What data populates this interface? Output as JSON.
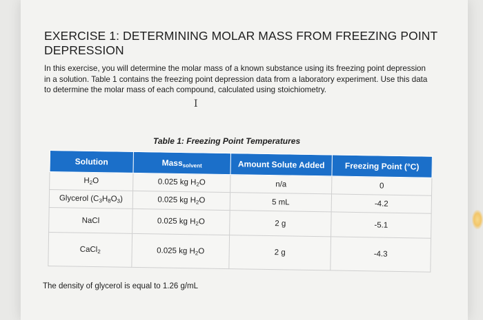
{
  "exercise": {
    "title": "EXERCISE 1: DETERMINING MOLAR MASS FROM FREEZING POINT DEPRESSION",
    "intro": "In this exercise, you will determine the molar mass of a known substance using its freezing point depression in a solution. Table 1 contains the freezing point depression data from a laboratory experiment. Use this data to determine the molar mass of each compound, calculated using stoichiometry.",
    "cursor_glyph": "I"
  },
  "table": {
    "caption": "Table 1: Freezing Point Temperatures",
    "headers": {
      "solution": "Solution",
      "mass_main": "Mass",
      "mass_sub": "solvent",
      "solute": "Amount Solute Added",
      "freezing": "Freezing Point (°C)"
    },
    "rows": [
      {
        "solution": [
          {
            "t": "H"
          },
          {
            "t": "2",
            "sub": true
          },
          {
            "t": "O"
          }
        ],
        "mass": [
          {
            "t": "0.025 kg H"
          },
          {
            "t": "2",
            "sub": true
          },
          {
            "t": "O"
          }
        ],
        "solute": "n/a",
        "freezing": "0"
      },
      {
        "solution": [
          {
            "t": "Glycerol (C"
          },
          {
            "t": "3",
            "sub": true
          },
          {
            "t": "H"
          },
          {
            "t": "8",
            "sub": true
          },
          {
            "t": "O"
          },
          {
            "t": "3",
            "sub": true
          },
          {
            "t": ")"
          }
        ],
        "mass": [
          {
            "t": "0.025 kg H"
          },
          {
            "t": "2",
            "sub": true
          },
          {
            "t": "O"
          }
        ],
        "solute": "5 mL",
        "freezing": "-4.2"
      },
      {
        "solution": [
          {
            "t": "NaCl"
          }
        ],
        "mass": [
          {
            "t": "0.025 kg H"
          },
          {
            "t": "2",
            "sub": true
          },
          {
            "t": "O"
          }
        ],
        "solute": "2 g",
        "freezing": "-5.1"
      },
      {
        "solution": [
          {
            "t": "CaCl"
          },
          {
            "t": "2",
            "sub": true
          }
        ],
        "mass": [
          {
            "t": "0.025 kg H"
          },
          {
            "t": "2",
            "sub": true
          },
          {
            "t": "O"
          }
        ],
        "solute": "2 g",
        "freezing": "-4.3"
      }
    ]
  },
  "footnote": "The density of glycerol is equal to 1.26 g/mL"
}
